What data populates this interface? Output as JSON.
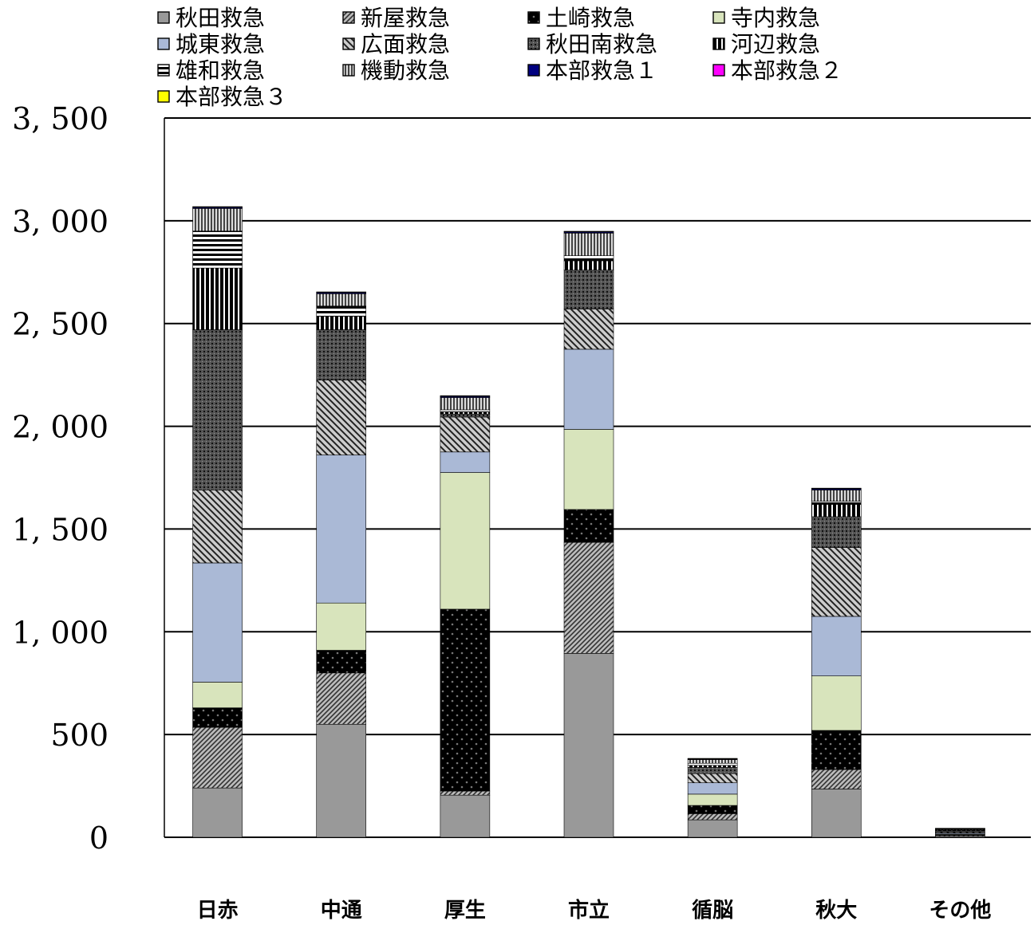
{
  "chart_data": {
    "type": "bar",
    "stacked": true,
    "title": "",
    "xlabel": "",
    "ylabel": "",
    "ylim": [
      0,
      3500
    ],
    "yticks": [
      0,
      500,
      1000,
      1500,
      2000,
      2500,
      3000,
      3500
    ],
    "ytick_labels": [
      "0",
      "500",
      "1, 000",
      "1, 500",
      "2, 000",
      "2, 500",
      "3, 000",
      "3, 500"
    ],
    "grid": true,
    "legend_position": "top",
    "categories": [
      "日赤",
      "中通",
      "厚生",
      "市立",
      "循脳",
      "秋大",
      "その他"
    ],
    "series": [
      {
        "name": "秋田救急",
        "color": "#999999",
        "pattern": "solid",
        "values": [
          240,
          550,
          205,
          895,
          85,
          235,
          5
        ]
      },
      {
        "name": "新屋救急",
        "color": "#888888",
        "pattern": "diag-fine",
        "values": [
          295,
          250,
          20,
          540,
          30,
          95,
          5
        ]
      },
      {
        "name": "土崎救急",
        "color": "#111111",
        "pattern": "dots",
        "values": [
          95,
          110,
          885,
          160,
          40,
          190,
          3
        ]
      },
      {
        "name": "寺内救急",
        "color": "#d8e4bc",
        "pattern": "solid",
        "values": [
          125,
          230,
          665,
          390,
          55,
          265,
          3
        ]
      },
      {
        "name": "城東救急",
        "color": "#aab9d6",
        "pattern": "solid",
        "values": [
          580,
          720,
          100,
          390,
          55,
          290,
          5
        ]
      },
      {
        "name": "広面救急",
        "color": "#777777",
        "pattern": "diag-wide",
        "values": [
          355,
          365,
          170,
          195,
          45,
          335,
          5
        ]
      },
      {
        "name": "秋田南救急",
        "color": "#333333",
        "pattern": "grid",
        "values": [
          780,
          245,
          15,
          190,
          30,
          150,
          5
        ]
      },
      {
        "name": "河辺救急",
        "color": "#222222",
        "pattern": "vstripe",
        "values": [
          300,
          65,
          10,
          45,
          10,
          60,
          3
        ]
      },
      {
        "name": "雄和救急",
        "color": "#333333",
        "pattern": "hstripe",
        "values": [
          180,
          50,
          10,
          25,
          10,
          15,
          3
        ]
      },
      {
        "name": "機動救急",
        "color": "#666666",
        "pattern": "vstripe-fine",
        "values": [
          110,
          60,
          60,
          110,
          18,
          55,
          3
        ]
      },
      {
        "name": "本部救急１",
        "color": "#000080",
        "pattern": "solid",
        "values": [
          5,
          5,
          5,
          5,
          2,
          5,
          2
        ]
      },
      {
        "name": "本部救急２",
        "color": "#ff00ff",
        "pattern": "solid",
        "values": [
          2,
          2,
          2,
          2,
          2,
          2,
          1
        ]
      },
      {
        "name": "本部救急３",
        "color": "#ffff00",
        "pattern": "solid",
        "values": [
          2,
          2,
          2,
          2,
          2,
          2,
          1
        ]
      }
    ]
  }
}
